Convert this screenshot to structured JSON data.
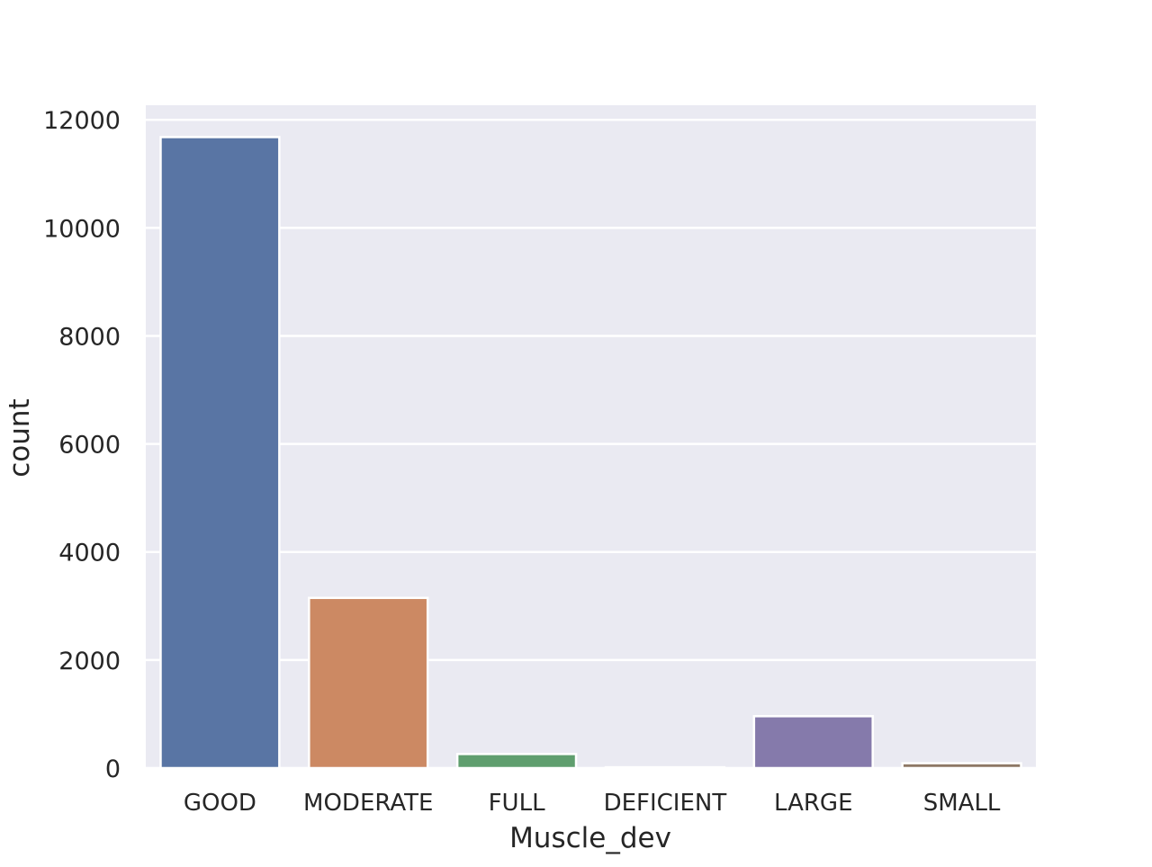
{
  "chart_data": {
    "type": "bar",
    "title": "",
    "xlabel": "Muscle_dev",
    "ylabel": "count",
    "categories": [
      "GOOD",
      "MODERATE",
      "FULL",
      "DEFICIENT",
      "LARGE",
      "SMALL"
    ],
    "values": [
      11680,
      3150,
      260,
      15,
      960,
      90
    ],
    "ylim": [
      0,
      12270
    ],
    "yticks": [
      0,
      2000,
      4000,
      6000,
      8000,
      10000,
      12000
    ],
    "ytick_labels": [
      "0",
      "2000",
      "4000",
      "6000",
      "8000",
      "10000",
      "12000"
    ],
    "grid": true,
    "legend": "none",
    "colors": [
      "#5975a4",
      "#cc8963",
      "#5f9e6e",
      "#b55d60",
      "#857aab",
      "#8d7866"
    ],
    "plot_background": "#eaeaf2",
    "gridline_color": "#ffffff"
  }
}
